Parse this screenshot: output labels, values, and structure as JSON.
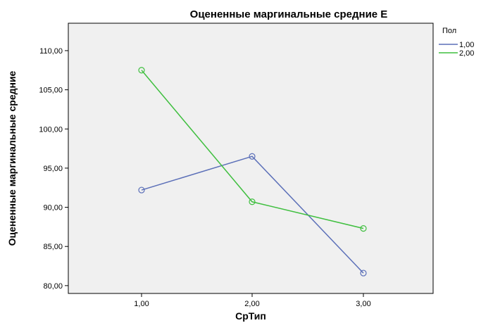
{
  "chart_data": {
    "type": "line",
    "title": "Оцененные маргинальные средние E",
    "xlabel": "СрТип",
    "ylabel": "Оцененные маргинальные средние",
    "categories": [
      "1,00",
      "2,00",
      "3,00"
    ],
    "yticks": [
      "80,00",
      "85,00",
      "90,00",
      "95,00",
      "100,00",
      "105,00",
      "110,00"
    ],
    "ylim": [
      79,
      113.5
    ],
    "legend_title": "Пол",
    "legend_position": "top-right",
    "grid": false,
    "series": [
      {
        "name": "1,00",
        "color": "#5b6fb8",
        "values": [
          92.2,
          96.5,
          81.6
        ]
      },
      {
        "name": "2,00",
        "color": "#3fbf3f",
        "values": [
          107.5,
          90.7,
          87.3
        ]
      }
    ]
  }
}
